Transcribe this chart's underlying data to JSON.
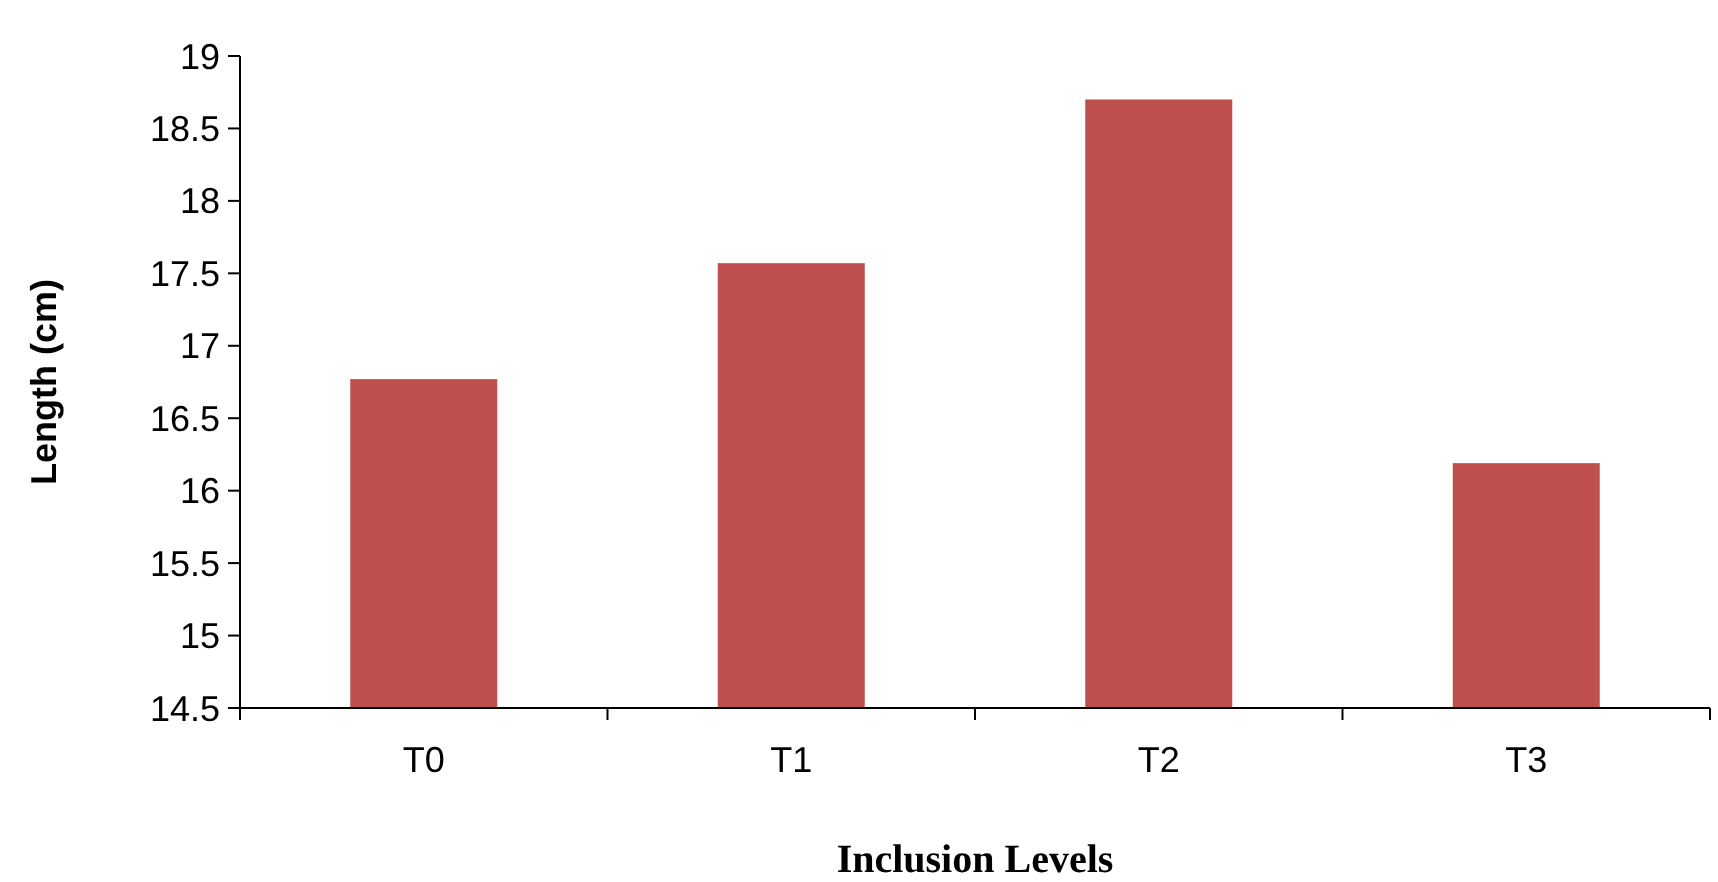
{
  "chart_data": {
    "type": "bar",
    "categories": [
      "T0",
      "T1",
      "T2",
      "T3"
    ],
    "values": [
      16.77,
      17.57,
      18.7,
      16.19
    ],
    "color": "#c0504d",
    "xlabel": "Inclusion Levels",
    "ylabel": "Length (cm)",
    "ylim": [
      14.5,
      19
    ],
    "yticks": [
      14.5,
      15,
      15.5,
      16,
      16.5,
      17,
      17.5,
      18,
      18.5,
      19
    ],
    "grid": false
  }
}
